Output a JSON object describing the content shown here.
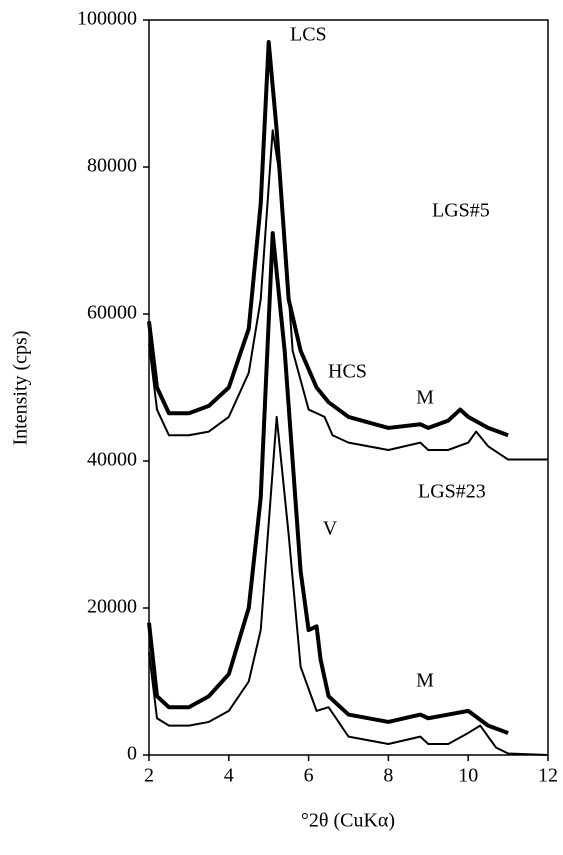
{
  "chart_data": {
    "type": "line",
    "x_label": "°2θ (CuKα)",
    "y_label": "Intensity (cps)",
    "xlim": [
      2,
      12
    ],
    "xticks": [
      2,
      4,
      6,
      8,
      10,
      12
    ],
    "ylim": [
      0,
      100000
    ],
    "yticks": [
      0,
      20000,
      40000,
      60000,
      80000,
      100000
    ],
    "grid": false,
    "annotations": [
      "LCS",
      "LGS#5",
      "HCS",
      "M",
      "LGS#23",
      "V",
      "M"
    ],
    "series": [
      {
        "color": "#000000",
        "line_width": 4,
        "x": [
          2,
          2.2,
          2.5,
          3,
          3.5,
          4,
          4.5,
          4.8,
          5.0,
          5.2,
          5.5,
          5.8,
          6.2,
          6.5,
          7,
          8,
          8.8,
          9,
          9.5,
          9.8,
          10,
          10.5,
          11
        ],
        "values": [
          59000,
          50000,
          46500,
          46500,
          47500,
          50000,
          58000,
          75000,
          97000,
          85000,
          62000,
          55000,
          50000,
          48000,
          46000,
          44500,
          45000,
          44500,
          45500,
          47000,
          46000,
          44500,
          43500
        ]
      },
      {
        "color": "#000000",
        "line_width": 2,
        "x": [
          2,
          2.2,
          2.5,
          3,
          3.5,
          4,
          4.5,
          4.8,
          5.1,
          5.3,
          5.6,
          6,
          6.4,
          6.6,
          7,
          8,
          8.8,
          9,
          9.5,
          10,
          10.2,
          10.5,
          11,
          12
        ],
        "values": [
          56000,
          47000,
          43500,
          43500,
          44000,
          46000,
          52000,
          62000,
          85000,
          78000,
          55000,
          47000,
          46000,
          43500,
          42500,
          41500,
          42500,
          41500,
          41500,
          42500,
          44000,
          42000,
          40200,
          40200
        ]
      },
      {
        "color": "#000000",
        "line_width": 4,
        "x": [
          2,
          2.2,
          2.5,
          3,
          3.5,
          4,
          4.5,
          4.8,
          5.1,
          5.4,
          5.8,
          6.0,
          6.2,
          6.3,
          6.5,
          7,
          8,
          8.8,
          9,
          9.5,
          10,
          10.5,
          11
        ],
        "values": [
          18000,
          8000,
          6500,
          6500,
          8000,
          11000,
          20000,
          35000,
          71000,
          55000,
          25000,
          17000,
          17500,
          13000,
          8000,
          5500,
          4500,
          5500,
          5000,
          5500,
          6000,
          4000,
          3000
        ]
      },
      {
        "color": "#000000",
        "line_width": 2,
        "x": [
          2,
          2.2,
          2.5,
          3,
          3.5,
          4,
          4.5,
          4.8,
          5.2,
          5.5,
          5.8,
          6.2,
          6.5,
          7,
          8,
          8.8,
          9,
          9.5,
          10,
          10.3,
          10.7,
          11,
          12
        ],
        "values": [
          14000,
          5000,
          4000,
          4000,
          4500,
          6000,
          10000,
          17000,
          46000,
          30000,
          12000,
          6000,
          6500,
          2500,
          1500,
          2500,
          1500,
          1500,
          3000,
          4000,
          1000,
          200,
          0
        ]
      }
    ]
  }
}
